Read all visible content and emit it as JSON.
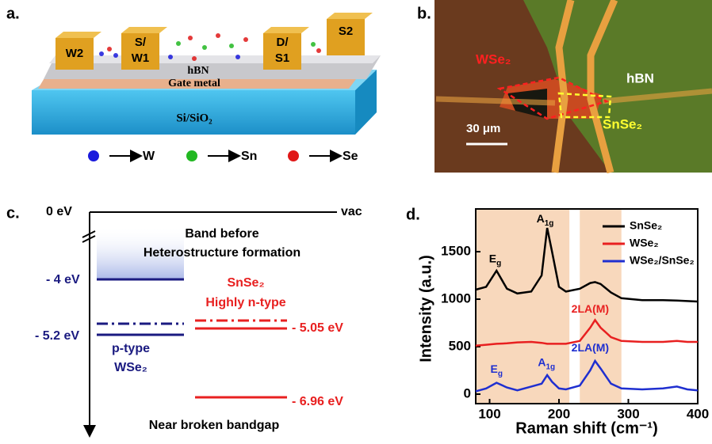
{
  "panel_a": {
    "label": "a.",
    "contacts": [
      [
        "W2"
      ],
      [
        "S/",
        "W1"
      ],
      [
        "D/",
        "S1"
      ],
      [
        "S2"
      ]
    ],
    "layers": [
      "hBN",
      "Gate metal",
      "Si/SiO₂"
    ],
    "legend": [
      {
        "name": "W",
        "color": "#1a1adc"
      },
      {
        "name": "Sn",
        "color": "#22b822"
      },
      {
        "name": "Se",
        "color": "#e01818"
      }
    ]
  },
  "panel_b": {
    "label": "b.",
    "wse2": "WSe₂",
    "hbn": "hBN",
    "scale": "30 μm",
    "snse2": "SnSe₂"
  },
  "panel_c": {
    "label": "c.",
    "zero": "0 eV",
    "vac": "vac",
    "title": [
      "Band before",
      "Heterostructure formation"
    ],
    "wse2_cb": "- 4 eV",
    "wse2_vb": "- 5.2 eV",
    "wse2_type": [
      "p-type",
      "WSe₂"
    ],
    "snse2_name": [
      "SnSe₂",
      "Highly n-type"
    ],
    "snse2_cb": "- 5.05 eV",
    "snse2_vb": "- 6.96 eV",
    "footer": "Near broken bandgap"
  },
  "chart_data": {
    "type": "line",
    "label": "d.",
    "x_label": "Raman shift (cm⁻¹)",
    "y_label": "Intensity (a.u.)",
    "x": [
      80,
      95,
      110,
      125,
      140,
      160,
      175,
      183,
      190,
      200,
      210,
      230,
      245,
      252,
      260,
      275,
      290,
      320,
      350,
      370,
      385,
      400
    ],
    "series": [
      {
        "name": "SnSe₂",
        "color": "#000000",
        "values": [
          1100,
          1130,
          1300,
          1110,
          1060,
          1080,
          1250,
          1750,
          1500,
          1130,
          1080,
          1110,
          1170,
          1180,
          1160,
          1070,
          1010,
          990,
          990,
          985,
          980,
          975
        ]
      },
      {
        "name": "WSe₂",
        "color": "#e82020",
        "values": [
          510,
          520,
          530,
          535,
          545,
          550,
          540,
          530,
          530,
          530,
          530,
          560,
          700,
          780,
          700,
          600,
          560,
          550,
          550,
          560,
          550,
          550
        ]
      },
      {
        "name": "WSe₂/SnSe₂",
        "color": "#1f2fd0",
        "values": [
          30,
          60,
          120,
          70,
          40,
          80,
          110,
          200,
          130,
          60,
          50,
          90,
          250,
          350,
          270,
          110,
          60,
          50,
          60,
          80,
          50,
          40
        ]
      }
    ],
    "annotations": [
      "Eg",
      "A1g",
      "2LA(M)",
      "Eg",
      "A1g",
      "2LA(M)"
    ],
    "shaded_ranges": [
      [
        80,
        215
      ],
      [
        230,
        290
      ]
    ],
    "shade_color": "#f8d8bc",
    "xlim": [
      80,
      400
    ],
    "xticks": [
      100,
      200,
      300,
      400
    ],
    "ylim": [
      -100,
      1950
    ],
    "yticks": [
      0,
      500,
      1000,
      1500
    ],
    "legend": "upper right"
  }
}
